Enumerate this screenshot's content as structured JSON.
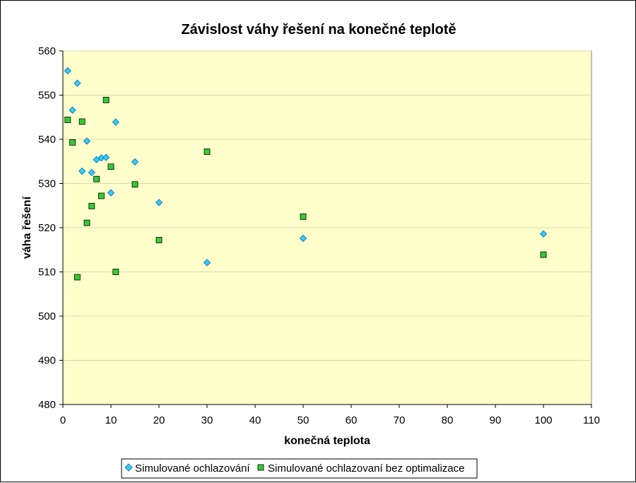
{
  "chart_data": {
    "type": "scatter",
    "title": "Závislost váhy řešení na konečné teplotě",
    "xlabel": "konečná teplota",
    "ylabel": "váha řešení",
    "xlim": [
      0,
      110
    ],
    "ylim": [
      480,
      560
    ],
    "xticks": [
      0,
      10,
      20,
      30,
      40,
      50,
      60,
      70,
      80,
      90,
      100,
      110
    ],
    "yticks": [
      480,
      490,
      500,
      510,
      520,
      530,
      540,
      550,
      560
    ],
    "grid": "horizontal",
    "plot_background": "#FFFFCC",
    "legend_position": "bottom",
    "series": [
      {
        "name": "Simulované ochlazování",
        "marker": "diamond",
        "color": "#33CCFF",
        "x": [
          1,
          2,
          3,
          4,
          5,
          6,
          7,
          8,
          9,
          10,
          11,
          15,
          20,
          30,
          50,
          100
        ],
        "y": [
          555.5,
          546.6,
          552.7,
          532.8,
          539.6,
          532.5,
          535.4,
          535.8,
          535.9,
          527.9,
          543.9,
          534.9,
          525.7,
          512.1,
          517.6,
          518.6
        ]
      },
      {
        "name": "Simulované ochlazovaní bez optimalizace",
        "marker": "square",
        "color": "#33CC33",
        "x": [
          1,
          2,
          3,
          4,
          5,
          6,
          7,
          8,
          9,
          10,
          11,
          15,
          20,
          30,
          50,
          100
        ],
        "y": [
          544.4,
          539.3,
          508.8,
          544.0,
          521.1,
          524.9,
          531.0,
          527.2,
          548.9,
          533.8,
          510.0,
          529.8,
          517.2,
          537.2,
          522.5,
          513.9
        ]
      }
    ]
  }
}
